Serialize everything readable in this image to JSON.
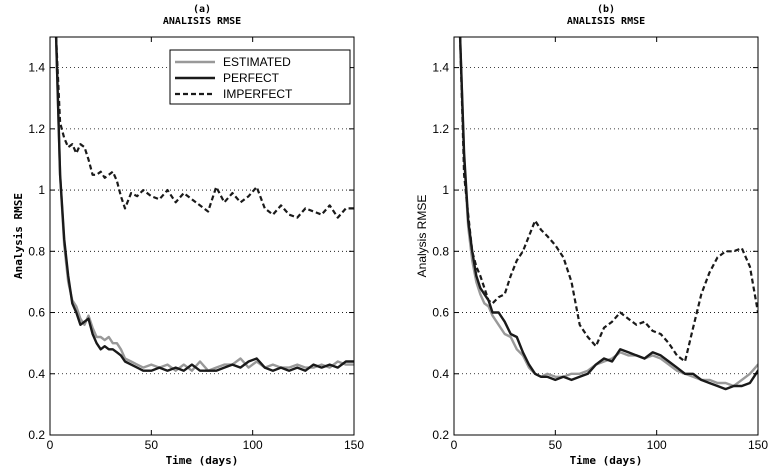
{
  "chart_data": [
    {
      "type": "line",
      "panel": "(a)",
      "title": "ANALISIS RMSE",
      "xlabel": "Time (days)",
      "ylabel": "Analysis RMSE",
      "xlim": [
        0,
        150
      ],
      "ylim": [
        0.2,
        1.5
      ],
      "xticks": [
        "0",
        "50",
        "100",
        "150"
      ],
      "yticks": [
        "0.2",
        "0.4",
        "0.6",
        "0.8",
        "1",
        "1.2",
        "1.4"
      ],
      "ytick_values": [
        0.2,
        0.4,
        0.6,
        0.8,
        1.0,
        1.2,
        1.4
      ],
      "xtick_values": [
        0,
        50,
        100,
        150
      ],
      "grid": "horizontal dotted",
      "legend": "top-right",
      "legend_entries": [
        "ESTIMATED",
        "PERFECT",
        "IMPERFECT"
      ],
      "series": [
        {
          "name": "ESTIMATED",
          "color": "#999999",
          "style": "solid",
          "x": [
            3,
            5,
            7,
            9,
            11,
            13,
            15,
            17,
            19,
            21,
            23,
            25,
            27,
            29,
            31,
            33,
            35,
            37,
            40,
            43,
            46,
            50,
            54,
            58,
            62,
            66,
            70,
            74,
            78,
            82,
            86,
            90,
            94,
            98,
            102,
            106,
            110,
            114,
            118,
            122,
            126,
            130,
            134,
            138,
            142,
            146,
            150
          ],
          "y": [
            1.5,
            1.05,
            0.82,
            0.7,
            0.64,
            0.62,
            0.58,
            0.56,
            0.59,
            0.55,
            0.52,
            0.52,
            0.51,
            0.52,
            0.5,
            0.5,
            0.48,
            0.45,
            0.44,
            0.43,
            0.42,
            0.43,
            0.42,
            0.43,
            0.41,
            0.43,
            0.41,
            0.44,
            0.41,
            0.42,
            0.43,
            0.43,
            0.45,
            0.42,
            0.44,
            0.42,
            0.43,
            0.42,
            0.42,
            0.43,
            0.42,
            0.42,
            0.43,
            0.42,
            0.44,
            0.43,
            0.43
          ]
        },
        {
          "name": "PERFECT",
          "color": "#1a1a1a",
          "style": "solid",
          "x": [
            3,
            5,
            7,
            9,
            11,
            13,
            15,
            17,
            19,
            21,
            23,
            25,
            27,
            29,
            31,
            33,
            35,
            37,
            40,
            43,
            46,
            50,
            54,
            58,
            62,
            66,
            70,
            74,
            78,
            82,
            86,
            90,
            94,
            98,
            102,
            106,
            110,
            114,
            118,
            122,
            126,
            130,
            134,
            138,
            142,
            146,
            150
          ],
          "y": [
            1.5,
            1.05,
            0.84,
            0.72,
            0.63,
            0.6,
            0.56,
            0.57,
            0.58,
            0.53,
            0.5,
            0.48,
            0.49,
            0.48,
            0.48,
            0.47,
            0.46,
            0.44,
            0.43,
            0.42,
            0.41,
            0.41,
            0.42,
            0.41,
            0.42,
            0.41,
            0.43,
            0.41,
            0.41,
            0.41,
            0.42,
            0.43,
            0.42,
            0.44,
            0.45,
            0.42,
            0.41,
            0.42,
            0.41,
            0.42,
            0.41,
            0.43,
            0.42,
            0.43,
            0.42,
            0.44,
            0.44
          ]
        },
        {
          "name": "IMPERFECT",
          "color": "#1a1a1a",
          "style": "dashed",
          "x": [
            3,
            5,
            7,
            9,
            11,
            13,
            15,
            17,
            19,
            21,
            23,
            25,
            27,
            29,
            31,
            33,
            35,
            37,
            40,
            43,
            46,
            50,
            54,
            58,
            62,
            66,
            70,
            74,
            78,
            82,
            86,
            90,
            94,
            98,
            102,
            106,
            110,
            114,
            118,
            122,
            126,
            130,
            134,
            138,
            142,
            146,
            150
          ],
          "y": [
            1.5,
            1.22,
            1.17,
            1.14,
            1.15,
            1.12,
            1.15,
            1.14,
            1.1,
            1.05,
            1.05,
            1.06,
            1.04,
            1.05,
            1.06,
            1.03,
            0.98,
            0.94,
            0.99,
            0.98,
            1.0,
            0.98,
            0.97,
            1.0,
            0.96,
            0.99,
            0.97,
            0.95,
            0.93,
            1.01,
            0.96,
            0.99,
            0.96,
            0.98,
            1.01,
            0.94,
            0.92,
            0.95,
            0.92,
            0.91,
            0.94,
            0.93,
            0.92,
            0.95,
            0.91,
            0.94,
            0.94
          ]
        }
      ]
    },
    {
      "type": "line",
      "panel": "(b)",
      "title": "ANALISIS RMSE",
      "xlabel": "Time (days)",
      "ylabel": "Analysis RMSE",
      "xlim": [
        0,
        150
      ],
      "ylim": [
        0.2,
        1.5
      ],
      "xticks": [
        "0",
        "50",
        "100",
        "150"
      ],
      "yticks": [
        "0.2",
        "0.4",
        "0.6",
        "0.8",
        "1",
        "1.2",
        "1.4"
      ],
      "ytick_values": [
        0.2,
        0.4,
        0.6,
        0.8,
        1.0,
        1.2,
        1.4
      ],
      "xtick_values": [
        0,
        50,
        100,
        150
      ],
      "grid": "horizontal dotted",
      "series": [
        {
          "name": "ESTIMATED",
          "color": "#999999",
          "style": "solid",
          "x": [
            3,
            5,
            7,
            9,
            11,
            13,
            15,
            17,
            19,
            22,
            25,
            28,
            31,
            34,
            37,
            40,
            43,
            46,
            50,
            54,
            58,
            62,
            66,
            70,
            74,
            78,
            82,
            86,
            90,
            94,
            98,
            102,
            106,
            110,
            114,
            118,
            122,
            126,
            130,
            134,
            138,
            142,
            146,
            150
          ],
          "y": [
            1.5,
            1.1,
            0.88,
            0.77,
            0.7,
            0.66,
            0.63,
            0.62,
            0.59,
            0.56,
            0.53,
            0.52,
            0.48,
            0.46,
            0.42,
            0.4,
            0.39,
            0.4,
            0.39,
            0.39,
            0.4,
            0.4,
            0.41,
            0.43,
            0.44,
            0.45,
            0.47,
            0.46,
            0.46,
            0.45,
            0.46,
            0.45,
            0.43,
            0.41,
            0.4,
            0.39,
            0.38,
            0.38,
            0.37,
            0.37,
            0.36,
            0.38,
            0.4,
            0.43
          ]
        },
        {
          "name": "PERFECT",
          "color": "#1a1a1a",
          "style": "solid",
          "x": [
            3,
            5,
            7,
            9,
            11,
            13,
            15,
            17,
            19,
            22,
            25,
            28,
            31,
            34,
            37,
            40,
            43,
            46,
            50,
            54,
            58,
            62,
            66,
            70,
            74,
            78,
            82,
            86,
            90,
            94,
            98,
            102,
            106,
            110,
            114,
            118,
            122,
            126,
            130,
            134,
            138,
            142,
            146,
            150
          ],
          "y": [
            1.5,
            1.12,
            0.9,
            0.8,
            0.72,
            0.68,
            0.66,
            0.64,
            0.6,
            0.6,
            0.57,
            0.53,
            0.52,
            0.47,
            0.43,
            0.4,
            0.39,
            0.39,
            0.38,
            0.39,
            0.38,
            0.39,
            0.4,
            0.43,
            0.45,
            0.44,
            0.48,
            0.47,
            0.46,
            0.45,
            0.47,
            0.46,
            0.44,
            0.42,
            0.4,
            0.4,
            0.38,
            0.37,
            0.36,
            0.35,
            0.36,
            0.36,
            0.37,
            0.41
          ]
        },
        {
          "name": "IMPERFECT",
          "color": "#1a1a1a",
          "style": "dashed",
          "x": [
            3,
            5,
            7,
            9,
            11,
            13,
            15,
            17,
            19,
            22,
            25,
            28,
            31,
            34,
            37,
            40,
            43,
            46,
            50,
            54,
            58,
            62,
            66,
            70,
            74,
            78,
            82,
            86,
            90,
            94,
            98,
            102,
            106,
            110,
            114,
            118,
            122,
            126,
            130,
            134,
            138,
            142,
            146,
            150
          ],
          "y": [
            1.5,
            1.05,
            0.92,
            0.8,
            0.75,
            0.72,
            0.68,
            0.64,
            0.63,
            0.65,
            0.66,
            0.72,
            0.77,
            0.8,
            0.85,
            0.9,
            0.87,
            0.85,
            0.82,
            0.78,
            0.7,
            0.56,
            0.52,
            0.49,
            0.55,
            0.57,
            0.6,
            0.58,
            0.56,
            0.57,
            0.54,
            0.53,
            0.5,
            0.46,
            0.44,
            0.55,
            0.66,
            0.73,
            0.78,
            0.8,
            0.8,
            0.81,
            0.75,
            0.6
          ]
        }
      ]
    }
  ]
}
